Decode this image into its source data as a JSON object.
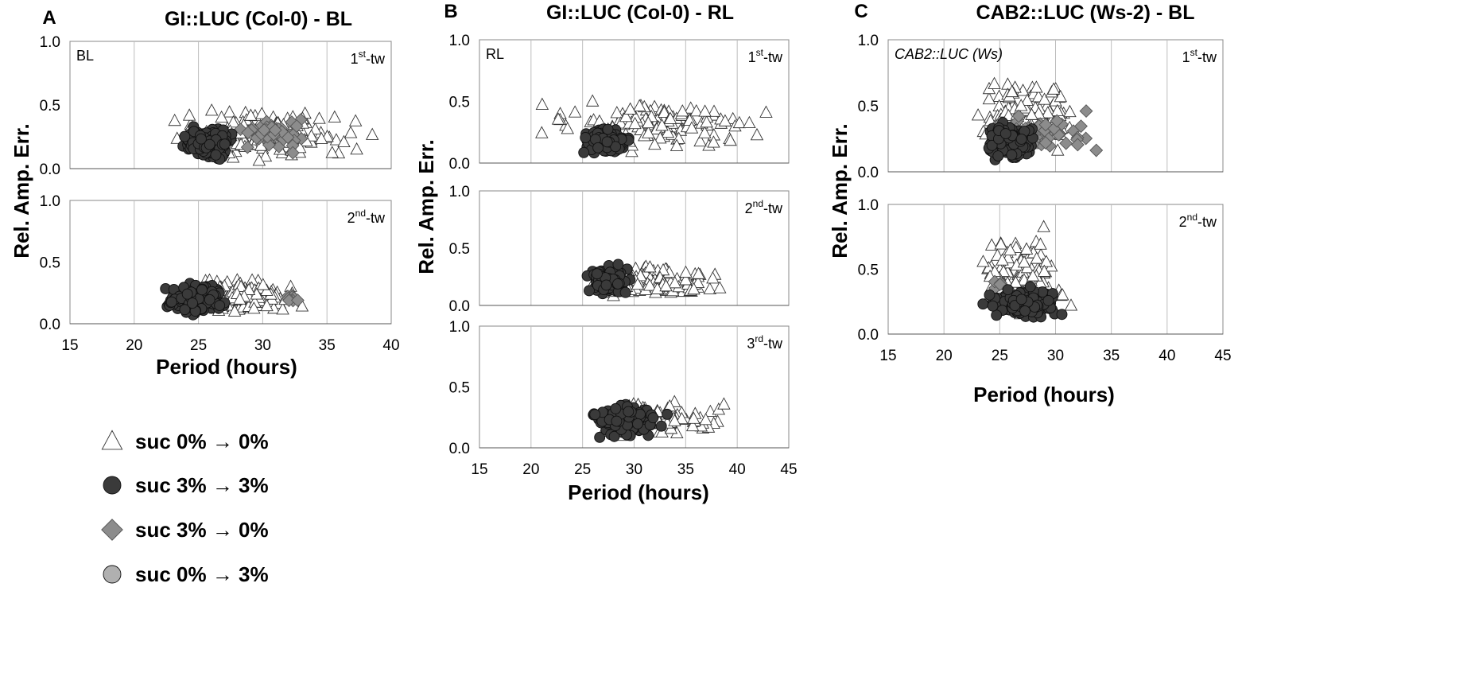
{
  "figure": {
    "legend": [
      {
        "key": "tri",
        "marker": "triangle",
        "label": "suc 0% → 0%",
        "fill": "#ffffff"
      },
      {
        "key": "dark",
        "marker": "circle",
        "label": "suc 3% → 3%",
        "fill": "#3a3a3a"
      },
      {
        "key": "diamond",
        "marker": "diamond",
        "label": "suc 3% → 0%",
        "fill": "#8c8c8c"
      },
      {
        "key": "lightcircle",
        "marker": "circle",
        "label": "suc 0% → 3%",
        "fill": "#b0b0b0"
      }
    ]
  },
  "chart_data": [
    {
      "panel": "A",
      "title": "GI::LUC (Col-0) - BL",
      "type": "scatter",
      "xlabel": "Period (hours)",
      "ylabel": "Rel. Amp. Err.",
      "xlim": [
        15,
        40
      ],
      "xticks": [
        "15",
        "20",
        "25",
        "30",
        "35",
        "40"
      ],
      "ylim": [
        0,
        1
      ],
      "yticks": [
        "0.0",
        "0.5",
        "1.0"
      ],
      "grid": "vertical",
      "subplots": [
        {
          "left_label": "BL",
          "right_label": {
            "base": "1",
            "sup": "st",
            "tail": "-tw"
          },
          "series": [
            {
              "key": "tri",
              "cluster": {
                "x": [
                  21,
                  39.5
                ],
                "y": [
                  0.05,
                  0.5
                ],
                "n": 150
              }
            },
            {
              "key": "dark",
              "cluster": {
                "x": [
                  23.5,
                  28
                ],
                "y": [
                  0.05,
                  0.35
                ],
                "n": 200
              }
            },
            {
              "key": "diamond",
              "cluster": {
                "x": [
                  27.5,
                  34
                ],
                "y": [
                  0.1,
                  0.45
                ],
                "n": 45
              }
            }
          ]
        },
        {
          "left_label": "",
          "right_label": {
            "base": "2",
            "sup": "nd",
            "tail": "-tw"
          },
          "series": [
            {
              "key": "tri",
              "cluster": {
                "x": [
                  22.5,
                  34
                ],
                "y": [
                  0.03,
                  0.4
                ],
                "n": 130
              }
            },
            {
              "key": "dark",
              "cluster": {
                "x": [
                  22,
                  27.5
                ],
                "y": [
                  0.05,
                  0.35
                ],
                "n": 190
              }
            },
            {
              "key": "diamond",
              "cluster": {
                "x": [
                  31.5,
                  33.5
                ],
                "y": [
                  0.15,
                  0.27
                ],
                "n": 8
              }
            }
          ]
        }
      ]
    },
    {
      "panel": "B",
      "title": "GI::LUC (Col-0) - RL",
      "type": "scatter",
      "xlabel": "Period (hours)",
      "ylabel": "Rel. Amp. Err.",
      "xlim": [
        15,
        45
      ],
      "xticks": [
        "15",
        "20",
        "25",
        "30",
        "35",
        "40",
        "45"
      ],
      "ylim": [
        0,
        1
      ],
      "yticks": [
        "0.0",
        "0.5",
        "1.0"
      ],
      "grid": "vertical",
      "subplots": [
        {
          "left_label": "RL",
          "right_label": {
            "base": "1",
            "sup": "st",
            "tail": "-tw"
          },
          "series": [
            {
              "key": "tri",
              "cluster": {
                "x": [
                  19,
                  45
                ],
                "y": [
                  0.05,
                  0.57
                ],
                "n": 140
              }
            },
            {
              "key": "dark",
              "cluster": {
                "x": [
                  24.5,
                  30
                ],
                "y": [
                  0.05,
                  0.3
                ],
                "n": 150
              }
            }
          ]
        },
        {
          "left_label": "",
          "right_label": {
            "base": "2",
            "sup": "nd",
            "tail": "-tw"
          },
          "series": [
            {
              "key": "tri",
              "cluster": {
                "x": [
                  24,
                  39.5
                ],
                "y": [
                  0.05,
                  0.38
                ],
                "n": 130
              }
            },
            {
              "key": "dark",
              "cluster": {
                "x": [
                  25,
                  30
                ],
                "y": [
                  0.05,
                  0.38
                ],
                "n": 140
              }
            }
          ]
        },
        {
          "left_label": "",
          "right_label": {
            "base": "3",
            "sup": "rd",
            "tail": "-tw"
          },
          "series": [
            {
              "key": "tri",
              "cluster": {
                "x": [
                  25,
                  40
                ],
                "y": [
                  0.05,
                  0.42
                ],
                "n": 90
              }
            },
            {
              "key": "dark",
              "cluster": {
                "x": [
                  25,
                  34
                ],
                "y": [
                  0.05,
                  0.4
                ],
                "n": 100
              }
            }
          ]
        }
      ]
    },
    {
      "panel": "C",
      "title": "CAB2::LUC (Ws-2) - BL",
      "type": "scatter",
      "xlabel": "Period (hours)",
      "ylabel": "Rel. Amp. Err.",
      "xlim": [
        15,
        45
      ],
      "xticks": [
        "15",
        "20",
        "25",
        "30",
        "35",
        "40",
        "45"
      ],
      "ylim": [
        0,
        1
      ],
      "yticks": [
        "0.0",
        "0.5",
        "1.0"
      ],
      "grid": "vertical",
      "subplots": [
        {
          "left_label": "CAB2::LUC (Ws)",
          "right_label": {
            "base": "1",
            "sup": "st",
            "tail": "-tw"
          },
          "series": [
            {
              "key": "tri",
              "cluster": {
                "x": [
                  22,
                  33
                ],
                "y": [
                  0.05,
                  0.8
                ],
                "n": 110
              }
            },
            {
              "key": "dark",
              "cluster": {
                "x": [
                  23,
                  29
                ],
                "y": [
                  0.05,
                  0.4
                ],
                "n": 160
              }
            },
            {
              "key": "diamond",
              "cluster": {
                "x": [
                  23,
                  35
                ],
                "y": [
                  0.08,
                  0.5
                ],
                "n": 45
              }
            }
          ]
        },
        {
          "left_label": "",
          "right_label": {
            "base": "2",
            "sup": "nd",
            "tail": "-tw"
          },
          "series": [
            {
              "key": "tri",
              "cluster": {
                "x": [
                  22,
                  32
                ],
                "y": [
                  0.05,
                  0.88
                ],
                "n": 110
              }
            },
            {
              "key": "dark",
              "cluster": {
                "x": [
                  23,
                  31
                ],
                "y": [
                  0.1,
                  0.38
                ],
                "n": 160
              }
            },
            {
              "key": "diamond",
              "cluster": {
                "x": [
                  24,
                  25.5
                ],
                "y": [
                  0.3,
                  0.5
                ],
                "n": 5
              }
            }
          ]
        }
      ]
    }
  ]
}
